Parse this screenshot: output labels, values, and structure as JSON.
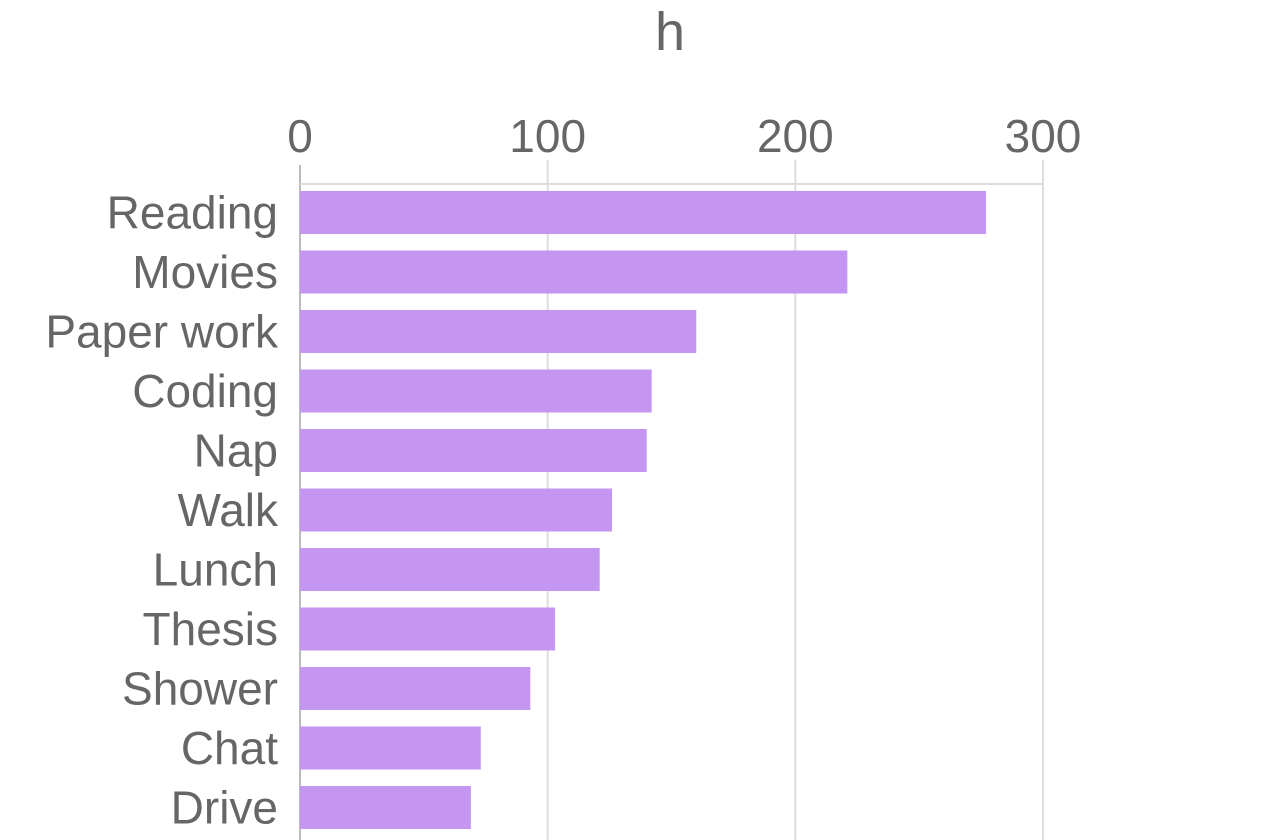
{
  "chart_data": {
    "type": "bar",
    "orientation": "horizontal",
    "title": "h",
    "xlabel": "",
    "ylabel": "",
    "categories": [
      "Reading",
      "Movies",
      "Paper work",
      "Coding",
      "Nap",
      "Walk",
      "Lunch",
      "Thesis",
      "Shower",
      "Chat",
      "Drive"
    ],
    "values": [
      277,
      221,
      160,
      142,
      140,
      126,
      121,
      103,
      93,
      73,
      69
    ],
    "xlim": [
      0,
      300
    ],
    "ticks": [
      0,
      100,
      200,
      300
    ],
    "tick_labels": [
      "0",
      "100",
      "200",
      "300"
    ],
    "x_axis_position": "top",
    "grid": true,
    "legend": "none",
    "bar_color": "#c495f1"
  }
}
